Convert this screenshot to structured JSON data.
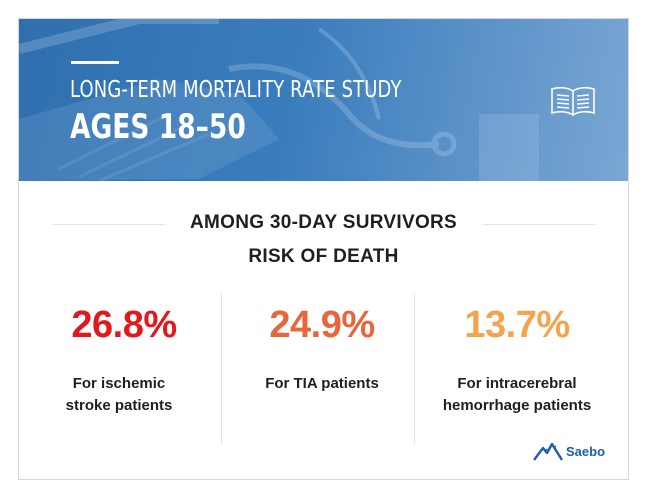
{
  "hero": {
    "title": "LONG-TERM MORTALITY RATE STUDY",
    "subtitle": "AGES 18–50"
  },
  "heading": {
    "line1": "AMONG 30-DAY SURVIVORS",
    "line2": "RISK OF DEATH"
  },
  "stats": [
    {
      "value": "26.8%",
      "label_line1": "For ischemic",
      "label_line2": "stroke patients",
      "color": "#e0191f"
    },
    {
      "value": "24.9%",
      "label_line1": "For TIA patients",
      "label_line2": "",
      "color": "#e8663a"
    },
    {
      "value": "13.7%",
      "label_line1": "For intracerebral",
      "label_line2": "hemorrhage patients",
      "color": "#f2a44f"
    }
  ],
  "logo": {
    "text": "Saebo",
    "icon": "mountain-logo-icon"
  },
  "icons": {
    "hero_icon": "book-icon"
  },
  "colors": {
    "hero_blue": "#3a7dbd",
    "brand_blue": "#1f5ea8"
  }
}
